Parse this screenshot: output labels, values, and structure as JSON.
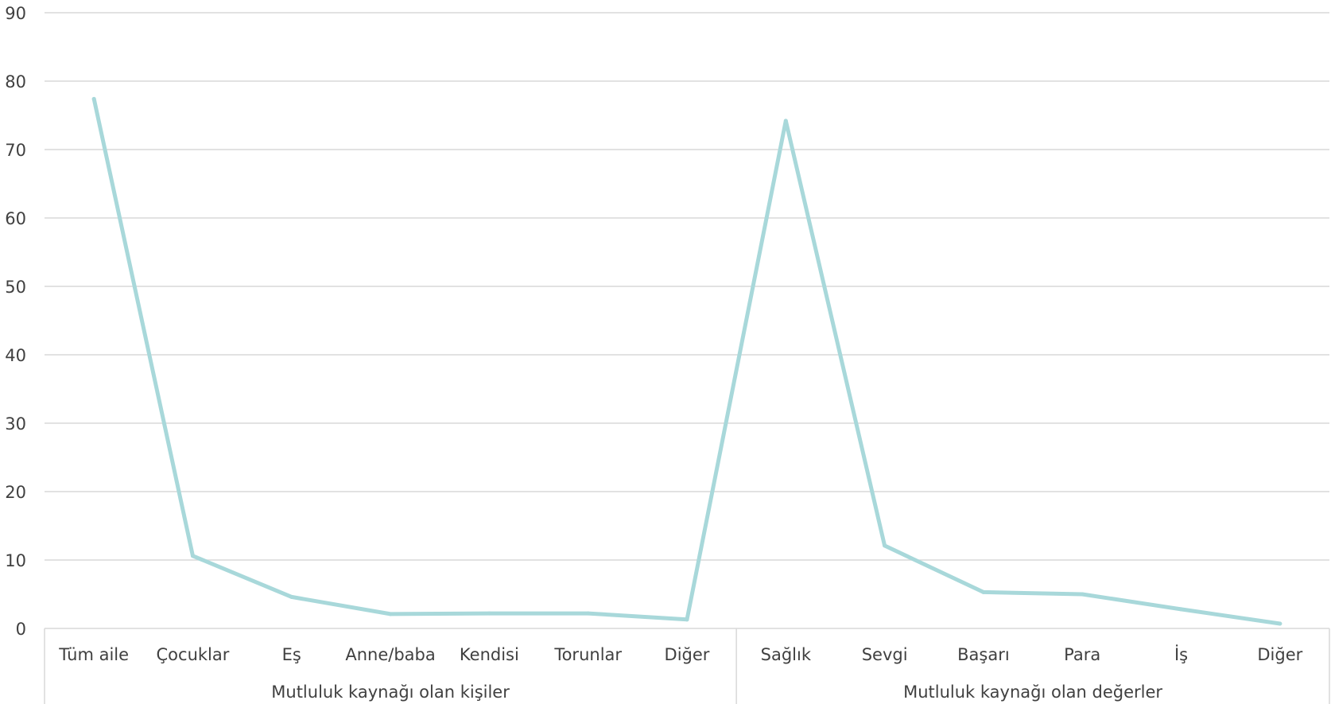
{
  "chart_data": {
    "type": "line",
    "title": "",
    "xlabel": "",
    "ylabel": "",
    "ylim": [
      0,
      90
    ],
    "y_ticks": [
      0,
      10,
      20,
      30,
      40,
      50,
      60,
      70,
      80,
      90
    ],
    "grid": true,
    "legend": "none",
    "line_color": "#a8d8da",
    "groups": [
      {
        "label": "Mutluluk kaynağı olan kişiler",
        "categories": [
          "Tüm aile",
          "Çocuklar",
          "Eş",
          "Anne/baba",
          "Kendisi",
          "Torunlar",
          "Diğer"
        ]
      },
      {
        "label": "Mutluluk kaynağı olan değerler",
        "categories": [
          "Sağlık",
          "Sevgi",
          "Başarı",
          "Para",
          "İş",
          "Diğer"
        ]
      }
    ],
    "series": [
      {
        "values": [
          77.4,
          10.6,
          4.6,
          2.1,
          2.2,
          2.2,
          1.3,
          74.2,
          12.1,
          5.3,
          5.0,
          2.8,
          0.7
        ]
      }
    ]
  }
}
